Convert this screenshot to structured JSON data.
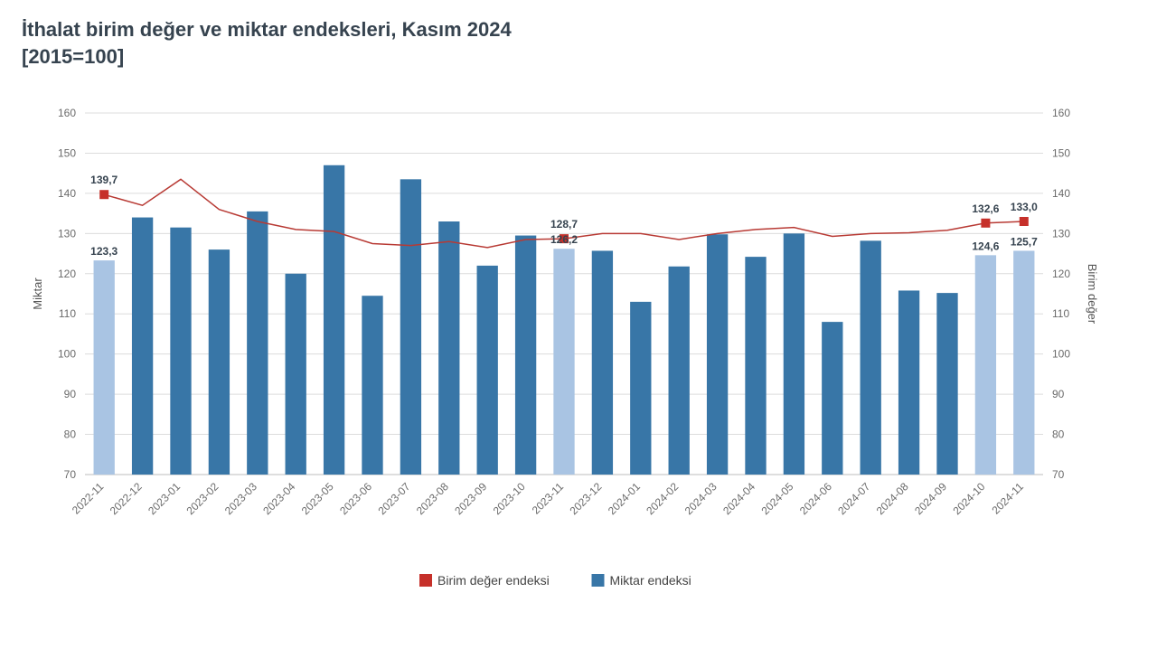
{
  "title_line1": "İthalat birim değer ve miktar endeksleri, Kasım 2024",
  "title_line2": "[2015=100]",
  "chart": {
    "type": "bar+line",
    "categories": [
      "2022-11",
      "2022-12",
      "2023-01",
      "2023-02",
      "2023-03",
      "2023-04",
      "2023-05",
      "2023-06",
      "2023-07",
      "2023-08",
      "2023-09",
      "2023-10",
      "2023-11",
      "2023-12",
      "2024-01",
      "2024-02",
      "2024-03",
      "2024-04",
      "2024-05",
      "2024-06",
      "2024-07",
      "2024-08",
      "2024-09",
      "2024-10",
      "2024-11"
    ],
    "bar_values": [
      123.3,
      134.0,
      131.5,
      126.0,
      135.5,
      120.0,
      147.0,
      114.5,
      143.5,
      133.0,
      122.0,
      129.5,
      126.2,
      125.7,
      113.0,
      121.8,
      129.8,
      124.2,
      130.0,
      108.0,
      128.2,
      115.8,
      115.2,
      124.6,
      125.7
    ],
    "bar_highlight_indices": [
      0,
      12,
      23,
      24
    ],
    "line_values": [
      139.7,
      137.0,
      143.5,
      136.0,
      133.0,
      131.0,
      130.5,
      127.5,
      127.0,
      128.0,
      126.5,
      128.5,
      128.7,
      130.0,
      130.0,
      128.5,
      130.0,
      131.0,
      131.5,
      129.3,
      130.0,
      130.2,
      130.8,
      132.6,
      133.0
    ],
    "line_marker_indices": [
      0,
      12,
      23,
      24
    ],
    "bar_labels": [
      {
        "index": 0,
        "text": "123,3"
      },
      {
        "index": 12,
        "text": "126,2"
      },
      {
        "index": 23,
        "text": "124,6"
      },
      {
        "index": 24,
        "text": "125,7"
      }
    ],
    "line_labels": [
      {
        "index": 0,
        "text": "139,7"
      },
      {
        "index": 12,
        "text": "128,7"
      },
      {
        "index": 23,
        "text": "132,6"
      },
      {
        "index": 24,
        "text": "133,0"
      }
    ],
    "yleft": {
      "label": "Miktar",
      "min": 70,
      "max": 160,
      "step": 10
    },
    "yright": {
      "label": "Birim değer",
      "min": 70,
      "max": 160,
      "step": 10
    },
    "colors": {
      "bar_primary": "#3876a7",
      "bar_highlight": "#a9c4e3",
      "line": "#b83a34",
      "marker": "#c6302a",
      "grid": "#dcdcdc",
      "axis": "#bcbcbc",
      "tick_text": "#6b6b6b",
      "bg": "#ffffff"
    },
    "bar_width_ratio": 0.55,
    "line_width": 1.5,
    "marker_size": 10,
    "fontsize_ticks": 12,
    "fontsize_axis_label": 13,
    "fontsize_data_label": 12
  },
  "legend": {
    "items": [
      {
        "label": "Birim değer endeksi",
        "type": "marker",
        "color": "#c6302a"
      },
      {
        "label": "Miktar endeksi",
        "type": "bar",
        "color": "#3876a7"
      }
    ]
  }
}
